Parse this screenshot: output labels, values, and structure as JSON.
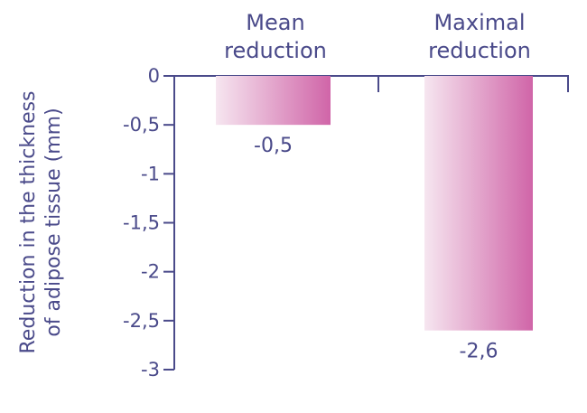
{
  "chart_data": {
    "type": "bar",
    "categories": [
      "Mean\nreduction",
      "Maximal\nreduction"
    ],
    "values": [
      -0.5,
      -2.6
    ],
    "data_labels": [
      "-0,5",
      "-2,6"
    ],
    "yticks": [
      0,
      -0.5,
      -1,
      -1.5,
      -2,
      -2.5,
      -3
    ],
    "ytick_labels": [
      "0",
      "-0,5",
      "-1",
      "-1,5",
      "-2",
      "-2,5",
      "-3"
    ],
    "ylim": [
      -3,
      0
    ],
    "ylabel_line1": "Reduction in the thickness",
    "ylabel_line2": "of adipose tissue (mm)",
    "grid": false,
    "legend": "none",
    "colors": {
      "axis": "#4a4a8a",
      "text": "#4a4a8a",
      "bar_dark": "#d065a8",
      "bar_light": "#f6e6f0"
    }
  }
}
